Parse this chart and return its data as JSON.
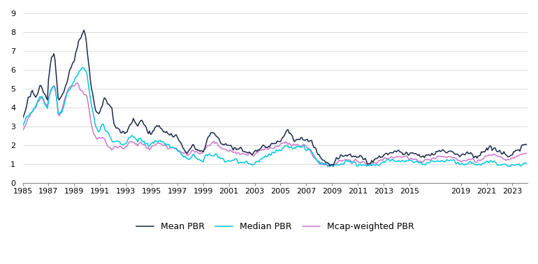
{
  "xlim": [
    1985.0,
    2024.17
  ],
  "ylim": [
    0,
    9
  ],
  "yticks": [
    0,
    1,
    2,
    3,
    4,
    5,
    6,
    7,
    8,
    9
  ],
  "line_colors": {
    "mean": "#1b2a4a",
    "median": "#00c8e0",
    "mcap": "#cc77cc"
  },
  "line_widths": {
    "mean": 1.1,
    "median": 1.1,
    "mcap": 1.1
  },
  "legend_labels": [
    "Mean PBR",
    "Median PBR",
    "Mcap-weighted PBR"
  ],
  "background_color": "#ffffff",
  "grid_color": "#d0d0d0"
}
